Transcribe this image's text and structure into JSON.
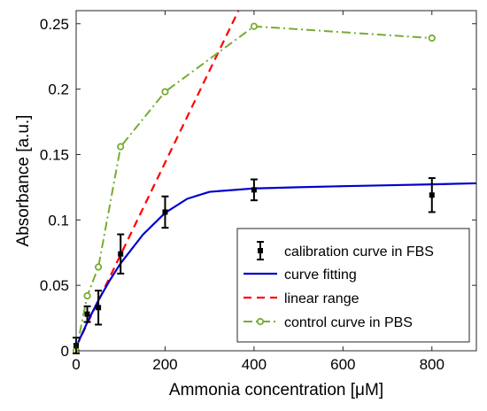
{
  "chart_data": {
    "type": "line",
    "xlabel": "Ammonia concentration [μM]",
    "ylabel": "Absorbance [a.u.]",
    "xlim": [
      0,
      900
    ],
    "ylim": [
      0,
      0.26
    ],
    "xticks": [
      0,
      200,
      400,
      600,
      800
    ],
    "yticks": [
      0,
      0.05,
      0.1,
      0.15,
      0.2,
      0.25
    ],
    "xtick_labels": [
      "0",
      "200",
      "400",
      "600",
      "800"
    ],
    "ytick_labels": [
      "0",
      "0.05",
      "0.1",
      "0.15",
      "0.2",
      "0.25"
    ],
    "grid": false,
    "legend_position": "bottom-right",
    "series": [
      {
        "name": "calibration curve in FBS",
        "style": "error-bar points",
        "color": "#000000",
        "x": [
          0,
          25,
          50,
          100,
          200,
          400,
          800
        ],
        "y": [
          0.004,
          0.028,
          0.033,
          0.074,
          0.106,
          0.123,
          0.119
        ],
        "err": [
          0.006,
          0.006,
          0.013,
          0.015,
          0.012,
          0.008,
          0.013
        ]
      },
      {
        "name": "curve fitting",
        "style": "solid line",
        "color": "#0000cc",
        "x": [
          0,
          25,
          50,
          75,
          100,
          150,
          200,
          250,
          300,
          400,
          500,
          600,
          700,
          800,
          900
        ],
        "y": [
          0.003,
          0.0217,
          0.0385,
          0.0535,
          0.0668,
          0.0887,
          0.1054,
          0.1162,
          0.1215,
          0.1241,
          0.125,
          0.1258,
          0.1265,
          0.1272,
          0.128
        ]
      },
      {
        "name": "linear range",
        "style": "dashed line",
        "color": "#ff0000",
        "x": [
          0,
          365
        ],
        "y": [
          0.003,
          0.26
        ]
      },
      {
        "name": "control curve in PBS",
        "style": "dash-dot line with circle markers",
        "color": "#77ac30",
        "x": [
          0,
          25,
          50,
          100,
          200,
          400,
          800
        ],
        "y": [
          0.0,
          0.042,
          0.064,
          0.156,
          0.198,
          0.248,
          0.239
        ]
      }
    ]
  }
}
